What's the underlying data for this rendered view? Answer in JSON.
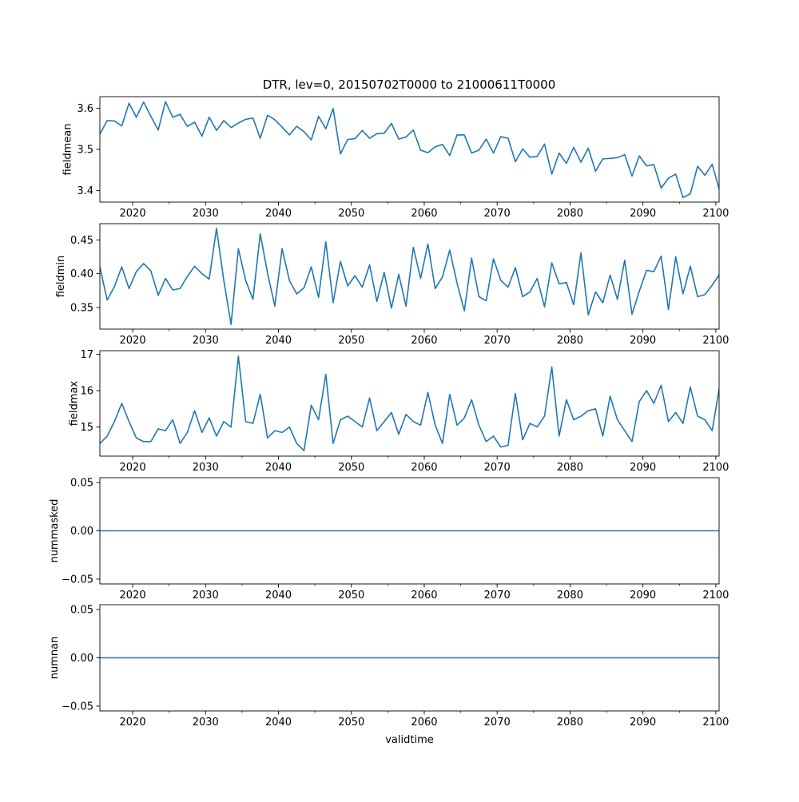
{
  "figure": {
    "title": "DTR, lev=0, 20150702T0000 to 21000611T0000",
    "line_color": "#1f77b4"
  },
  "chart_data": [
    {
      "type": "line",
      "name": "fieldmean",
      "ylabel": "fieldmean",
      "xlabel": "",
      "xlim": [
        2015.5,
        2100.45
      ],
      "ylim": [
        3.372,
        3.628
      ],
      "xticks": [
        2020,
        2030,
        2040,
        2050,
        2060,
        2070,
        2080,
        2090,
        2100
      ],
      "xtick_labels": [
        "2020",
        "2030",
        "2040",
        "2050",
        "2060",
        "2070",
        "2080",
        "2090",
        "2100"
      ],
      "yticks": [
        3.4,
        3.5,
        3.6
      ],
      "ytick_labels": [
        "3.4",
        "3.5",
        "3.6"
      ],
      "x_start": 2015.5,
      "x_step": 1,
      "values": [
        3.537,
        3.57,
        3.569,
        3.557,
        3.612,
        3.578,
        3.615,
        3.58,
        3.547,
        3.616,
        3.578,
        3.585,
        3.556,
        3.566,
        3.532,
        3.578,
        3.546,
        3.57,
        3.553,
        3.564,
        3.573,
        3.576,
        3.527,
        3.583,
        3.572,
        3.554,
        3.535,
        3.556,
        3.543,
        3.523,
        3.58,
        3.55,
        3.599,
        3.489,
        3.524,
        3.526,
        3.546,
        3.527,
        3.538,
        3.539,
        3.563,
        3.525,
        3.53,
        3.547,
        3.498,
        3.492,
        3.506,
        3.512,
        3.485,
        3.535,
        3.535,
        3.491,
        3.498,
        3.525,
        3.491,
        3.531,
        3.527,
        3.47,
        3.501,
        3.481,
        3.483,
        3.513,
        3.44,
        3.491,
        3.466,
        3.505,
        3.469,
        3.503,
        3.447,
        3.477,
        3.478,
        3.48,
        3.487,
        3.435,
        3.484,
        3.46,
        3.463,
        3.406,
        3.43,
        3.44,
        3.383,
        3.392,
        3.459,
        3.437,
        3.464,
        3.401
      ]
    },
    {
      "type": "line",
      "name": "fieldmin",
      "ylabel": "fieldmin",
      "xlabel": "",
      "xlim": [
        2015.5,
        2100.45
      ],
      "ylim": [
        0.318,
        0.474
      ],
      "xticks": [
        2020,
        2030,
        2040,
        2050,
        2060,
        2070,
        2080,
        2090,
        2100
      ],
      "xtick_labels": [
        "2020",
        "2030",
        "2040",
        "2050",
        "2060",
        "2070",
        "2080",
        "2090",
        "2100"
      ],
      "yticks": [
        0.35,
        0.4,
        0.45
      ],
      "ytick_labels": [
        "0.35",
        "0.40",
        "0.45"
      ],
      "x_start": 2015.5,
      "x_step": 1,
      "values": [
        0.41,
        0.361,
        0.381,
        0.41,
        0.378,
        0.403,
        0.415,
        0.404,
        0.368,
        0.393,
        0.376,
        0.378,
        0.396,
        0.411,
        0.4,
        0.392,
        0.467,
        0.39,
        0.325,
        0.437,
        0.39,
        0.362,
        0.459,
        0.401,
        0.352,
        0.437,
        0.39,
        0.37,
        0.379,
        0.41,
        0.365,
        0.447,
        0.357,
        0.418,
        0.382,
        0.397,
        0.38,
        0.413,
        0.359,
        0.402,
        0.349,
        0.399,
        0.352,
        0.439,
        0.393,
        0.444,
        0.378,
        0.395,
        0.435,
        0.386,
        0.345,
        0.423,
        0.366,
        0.36,
        0.422,
        0.39,
        0.38,
        0.409,
        0.366,
        0.373,
        0.393,
        0.351,
        0.416,
        0.385,
        0.387,
        0.354,
        0.431,
        0.339,
        0.373,
        0.357,
        0.398,
        0.362,
        0.42,
        0.34,
        0.374,
        0.405,
        0.403,
        0.426,
        0.347,
        0.425,
        0.37,
        0.411,
        0.366,
        0.369,
        0.383,
        0.399
      ]
    },
    {
      "type": "line",
      "name": "fieldmax",
      "ylabel": "fieldmax",
      "xlabel": "",
      "xlim": [
        2015.5,
        2100.45
      ],
      "ylim": [
        14.2,
        17.1
      ],
      "xticks": [
        2020,
        2030,
        2040,
        2050,
        2060,
        2070,
        2080,
        2090,
        2100
      ],
      "xtick_labels": [
        "2020",
        "2030",
        "2040",
        "2050",
        "2060",
        "2070",
        "2080",
        "2090",
        "2100"
      ],
      "yticks": [
        15,
        16,
        17
      ],
      "ytick_labels": [
        "15",
        "16",
        "17"
      ],
      "x_start": 2015.5,
      "x_step": 1,
      "values": [
        14.55,
        14.75,
        15.15,
        15.65,
        15.15,
        14.7,
        14.6,
        14.6,
        14.95,
        14.9,
        15.2,
        14.55,
        14.85,
        15.45,
        14.85,
        15.25,
        14.75,
        15.15,
        15.0,
        16.95,
        15.15,
        15.1,
        15.9,
        14.7,
        14.9,
        14.85,
        15.0,
        14.55,
        14.35,
        15.6,
        15.2,
        16.45,
        14.55,
        15.2,
        15.3,
        15.15,
        15.0,
        15.8,
        14.9,
        15.15,
        15.4,
        14.8,
        15.35,
        15.15,
        15.05,
        15.95,
        15.05,
        14.55,
        15.9,
        15.05,
        15.25,
        15.75,
        15.05,
        14.6,
        14.75,
        14.45,
        14.5,
        15.92,
        14.65,
        15.1,
        15.0,
        15.3,
        16.65,
        14.75,
        15.75,
        15.2,
        15.3,
        15.45,
        15.5,
        14.75,
        15.85,
        15.2,
        14.9,
        14.6,
        15.7,
        16.0,
        15.65,
        16.15,
        15.15,
        15.4,
        15.1,
        16.1,
        15.3,
        15.2,
        14.9,
        16.1
      ]
    },
    {
      "type": "line",
      "name": "nummasked",
      "ylabel": "nummasked",
      "xlabel": "",
      "xlim": [
        2015.5,
        2100.45
      ],
      "ylim": [
        -0.055,
        0.055
      ],
      "xticks": [
        2020,
        2030,
        2040,
        2050,
        2060,
        2070,
        2080,
        2090,
        2100
      ],
      "xtick_labels": [
        "2020",
        "2030",
        "2040",
        "2050",
        "2060",
        "2070",
        "2080",
        "2090",
        "2100"
      ],
      "yticks": [
        -0.05,
        0.0,
        0.05
      ],
      "ytick_labels": [
        "−0.05",
        "0.00",
        "0.05"
      ],
      "x_start": 2015.5,
      "x_step": 84.95,
      "values": [
        0,
        0
      ]
    },
    {
      "type": "line",
      "name": "numnan",
      "ylabel": "numnan",
      "xlabel": "validtime",
      "xlim": [
        2015.5,
        2100.45
      ],
      "ylim": [
        -0.055,
        0.055
      ],
      "xticks": [
        2020,
        2030,
        2040,
        2050,
        2060,
        2070,
        2080,
        2090,
        2100
      ],
      "xtick_labels": [
        "2020",
        "2030",
        "2040",
        "2050",
        "2060",
        "2070",
        "2080",
        "2090",
        "2100"
      ],
      "yticks": [
        -0.05,
        0.0,
        0.05
      ],
      "ytick_labels": [
        "−0.05",
        "0.00",
        "0.05"
      ],
      "x_start": 2015.5,
      "x_step": 84.95,
      "values": [
        0,
        0
      ]
    }
  ]
}
